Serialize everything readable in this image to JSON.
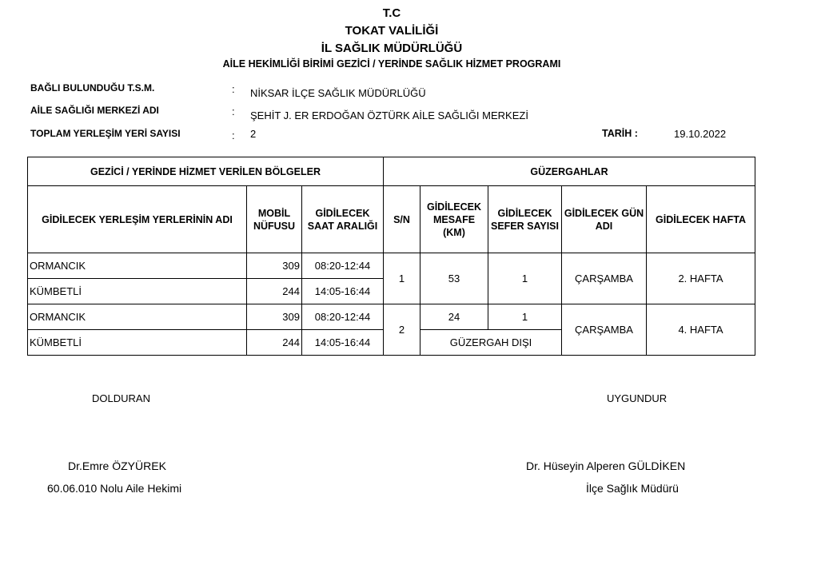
{
  "header": {
    "line1": "T.C",
    "line2": "TOKAT VALİLİĞİ",
    "line3": "İL SAĞLIK MÜDÜRLÜĞÜ",
    "line4": "AİLE HEKİMLİĞİ BİRİMİ GEZİCİ / YERİNDE SAĞLIK HİZMET PROGRAMI"
  },
  "info": [
    {
      "label": "BAĞLI BULUNDUĞU T.S.M.",
      "value": "NİKSAR İLÇE SAĞLIK MÜDÜRLÜĞÜ"
    },
    {
      "label": "AİLE SAĞLIĞI MERKEZİ ADI",
      "value": "ŞEHİT J. ER ERDOĞAN ÖZTÜRK AİLE SAĞLIĞI MERKEZİ"
    },
    {
      "label": "TOPLAM YERLEŞİM YERİ SAYISI",
      "value": "2"
    }
  ],
  "colon": ":",
  "date": {
    "label": "TARİH :",
    "value": "19.10.2022"
  },
  "table": {
    "group1": "GEZİCİ / YERİNDE HİZMET VERİLEN BÖLGELER",
    "group2": "GÜZERGAHLAR",
    "cols": [
      "GİDİLECEK YERLEŞİM YERLERİNİN ADI",
      "MOBİL NÜFUSU",
      "GİDİLECEK SAAT ARALIĞI",
      "S/N",
      "GİDİLECEK MESAFE (KM)",
      "GİDİLECEK SEFER SAYISI",
      "GİDİLECEK GÜN ADI",
      "GİDİLECEK HAFTA"
    ],
    "routes": [
      {
        "sn": "1",
        "km": "53",
        "sefer": "1",
        "day": "ÇARŞAMBA",
        "week": "2. HAFTA",
        "places": [
          {
            "name": "ORMANCIK",
            "pop": "309",
            "time": "08:20-12:44"
          },
          {
            "name": "KÜMBETLİ",
            "pop": "244",
            "time": "14:05-16:44"
          }
        ]
      },
      {
        "sn": "2",
        "km": "24",
        "sefer": "1",
        "off_route": "GÜZERGAH DIŞI",
        "day": "ÇARŞAMBA",
        "week": "4.  HAFTA",
        "places": [
          {
            "name": "ORMANCIK",
            "pop": "309",
            "time": "08:20-12:44"
          },
          {
            "name": "KÜMBETLİ",
            "pop": "244",
            "time": "14:05-16:44"
          }
        ]
      }
    ]
  },
  "signatures": {
    "left": {
      "role": "DOLDURAN",
      "name": "Dr.Emre ÖZYÜREK",
      "title": "60.06.010 Nolu Aile Hekimi"
    },
    "right": {
      "role": "UYGUNDUR",
      "name": "Dr. Hüseyin Alperen GÜLDİKEN",
      "title": "İlçe Sağlık Müdürü"
    }
  }
}
